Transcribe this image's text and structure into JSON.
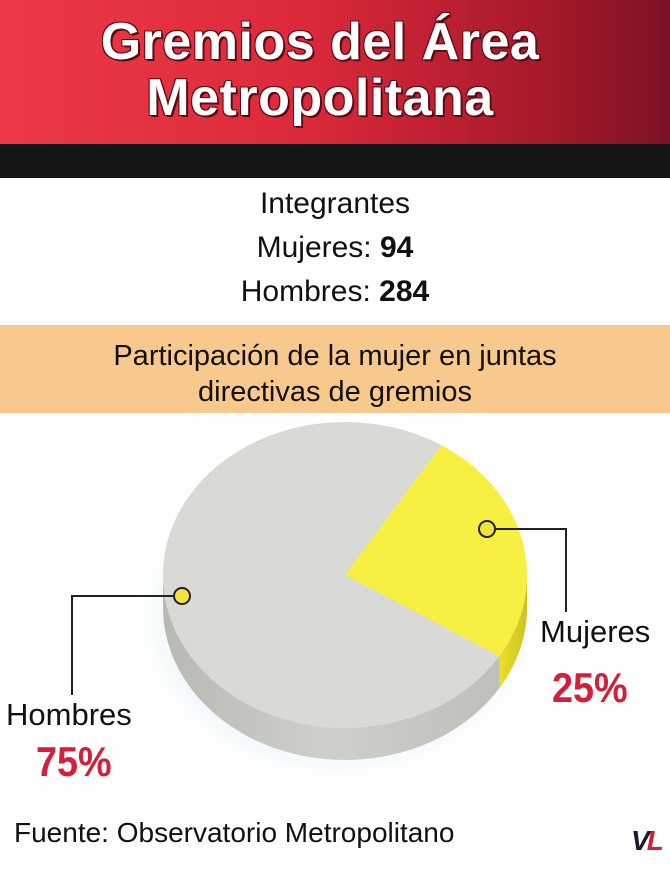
{
  "header": {
    "title_line1": "Gremios del Área",
    "title_line2": "Metropolitana"
  },
  "stats": {
    "heading": "Integrantes",
    "women_label": "Mujeres:",
    "women_value": "94",
    "men_label": "Hombres:",
    "men_value": "284"
  },
  "banner": {
    "line1": "Participación de la mujer en juntas",
    "line2": "directivas de gremios"
  },
  "chart_data": {
    "type": "pie",
    "title": "Participación de la mujer en juntas directivas de gremios",
    "slices": [
      {
        "label": "Mujeres",
        "value": 25,
        "display": "25%",
        "color": "#f7f043"
      },
      {
        "label": "Hombres",
        "value": 75,
        "display": "75%",
        "color": "#d9d9d6"
      }
    ]
  },
  "colors": {
    "accent_red": "#d41f3a",
    "banner": "#f7c98c",
    "marker": "#f2e33a"
  },
  "source": "Fuente: Observatorio Metropolitano",
  "logo": {
    "v": "V",
    "l": "L"
  }
}
